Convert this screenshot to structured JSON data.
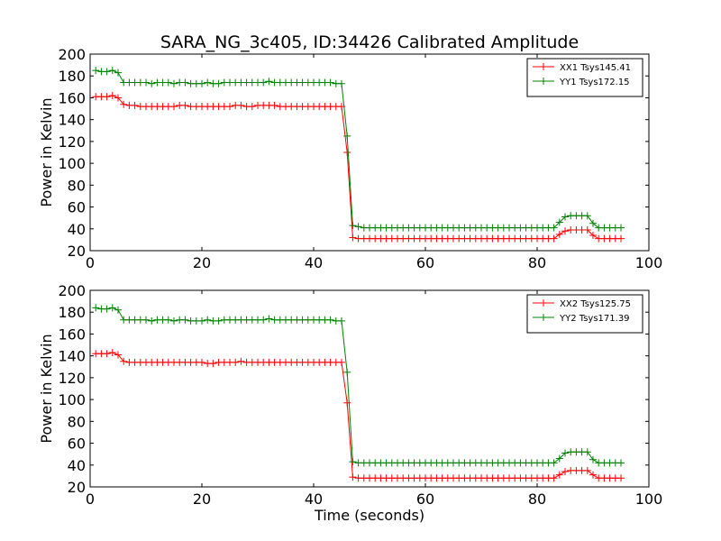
{
  "title": "SARA_NG_3c405, ID:34426 Calibrated Amplitude",
  "chart_data": [
    {
      "type": "line",
      "title": "SARA_NG_3c405, ID:34426 Calibrated Amplitude",
      "xlabel": "",
      "ylabel": "Power in Kelvin",
      "xlim": [
        0,
        100
      ],
      "ylim": [
        20,
        200
      ],
      "xticks": [
        0,
        20,
        40,
        60,
        80,
        100
      ],
      "yticks": [
        20,
        40,
        60,
        80,
        100,
        120,
        140,
        160,
        180,
        200
      ],
      "legend": "top-right",
      "grid": false,
      "series": [
        {
          "name": "XX1 Tsys145.41",
          "color": "#ff0000",
          "x": [
            1,
            2,
            3,
            4,
            5,
            6,
            7,
            8,
            9,
            10,
            11,
            12,
            13,
            14,
            15,
            16,
            17,
            18,
            19,
            20,
            21,
            22,
            23,
            24,
            25,
            26,
            27,
            28,
            29,
            30,
            31,
            32,
            33,
            34,
            35,
            36,
            37,
            38,
            39,
            40,
            41,
            42,
            43,
            44,
            45,
            46,
            47,
            48,
            49,
            50,
            51,
            52,
            53,
            54,
            55,
            56,
            57,
            58,
            59,
            60,
            61,
            62,
            63,
            64,
            65,
            66,
            67,
            68,
            69,
            70,
            71,
            72,
            73,
            74,
            75,
            76,
            77,
            78,
            79,
            80,
            81,
            82,
            83,
            84,
            85,
            86,
            87,
            88,
            89,
            90,
            91,
            92,
            93,
            94,
            95
          ],
          "y": [
            161,
            161,
            161,
            162,
            160,
            154,
            153,
            153,
            152,
            152,
            152,
            152,
            152,
            152,
            152,
            153,
            153,
            152,
            152,
            152,
            152,
            152,
            152,
            152,
            152,
            153,
            153,
            152,
            152,
            153,
            153,
            153,
            153,
            152,
            152,
            152,
            152,
            152,
            152,
            152,
            152,
            152,
            152,
            152,
            152,
            110,
            32,
            31,
            31,
            31,
            31,
            31,
            31,
            31,
            31,
            31,
            31,
            31,
            31,
            31,
            31,
            31,
            31,
            31,
            31,
            31,
            31,
            31,
            31,
            31,
            31,
            31,
            31,
            31,
            31,
            31,
            31,
            31,
            31,
            31,
            31,
            31,
            31,
            35,
            38,
            39,
            39,
            39,
            39,
            34,
            31,
            31,
            31,
            31,
            31
          ]
        },
        {
          "name": "YY1 Tsys172.15",
          "color": "#008000",
          "x": [
            1,
            2,
            3,
            4,
            5,
            6,
            7,
            8,
            9,
            10,
            11,
            12,
            13,
            14,
            15,
            16,
            17,
            18,
            19,
            20,
            21,
            22,
            23,
            24,
            25,
            26,
            27,
            28,
            29,
            30,
            31,
            32,
            33,
            34,
            35,
            36,
            37,
            38,
            39,
            40,
            41,
            42,
            43,
            44,
            45,
            46,
            47,
            48,
            49,
            50,
            51,
            52,
            53,
            54,
            55,
            56,
            57,
            58,
            59,
            60,
            61,
            62,
            63,
            64,
            65,
            66,
            67,
            68,
            69,
            70,
            71,
            72,
            73,
            74,
            75,
            76,
            77,
            78,
            79,
            80,
            81,
            82,
            83,
            84,
            85,
            86,
            87,
            88,
            89,
            90,
            91,
            92,
            93,
            94,
            95
          ],
          "y": [
            185,
            184,
            184,
            185,
            183,
            174,
            174,
            174,
            174,
            174,
            173,
            174,
            174,
            174,
            173,
            174,
            174,
            173,
            173,
            173,
            174,
            173,
            173,
            174,
            174,
            174,
            174,
            174,
            174,
            174,
            174,
            175,
            174,
            174,
            174,
            174,
            174,
            174,
            174,
            174,
            174,
            174,
            174,
            173,
            173,
            125,
            43,
            42,
            41,
            41,
            41,
            41,
            41,
            41,
            41,
            41,
            41,
            41,
            41,
            41,
            41,
            41,
            41,
            41,
            41,
            41,
            41,
            41,
            41,
            41,
            41,
            41,
            41,
            41,
            41,
            41,
            41,
            41,
            41,
            41,
            41,
            41,
            41,
            46,
            51,
            52,
            52,
            52,
            52,
            45,
            41,
            41,
            41,
            41,
            41
          ]
        }
      ]
    },
    {
      "type": "line",
      "title": "",
      "xlabel": "Time (seconds)",
      "ylabel": "Power in Kelvin",
      "xlim": [
        0,
        100
      ],
      "ylim": [
        20,
        200
      ],
      "xticks": [
        0,
        20,
        40,
        60,
        80,
        100
      ],
      "yticks": [
        20,
        40,
        60,
        80,
        100,
        120,
        140,
        160,
        180,
        200
      ],
      "legend": "top-right",
      "grid": false,
      "series": [
        {
          "name": "XX2 Tsys125.75",
          "color": "#ff0000",
          "x": [
            1,
            2,
            3,
            4,
            5,
            6,
            7,
            8,
            9,
            10,
            11,
            12,
            13,
            14,
            15,
            16,
            17,
            18,
            19,
            20,
            21,
            22,
            23,
            24,
            25,
            26,
            27,
            28,
            29,
            30,
            31,
            32,
            33,
            34,
            35,
            36,
            37,
            38,
            39,
            40,
            41,
            42,
            43,
            44,
            45,
            46,
            47,
            48,
            49,
            50,
            51,
            52,
            53,
            54,
            55,
            56,
            57,
            58,
            59,
            60,
            61,
            62,
            63,
            64,
            65,
            66,
            67,
            68,
            69,
            70,
            71,
            72,
            73,
            74,
            75,
            76,
            77,
            78,
            79,
            80,
            81,
            82,
            83,
            84,
            85,
            86,
            87,
            88,
            89,
            90,
            91,
            92,
            93,
            94,
            95
          ],
          "y": [
            142,
            142,
            142,
            143,
            141,
            135,
            134,
            134,
            134,
            134,
            134,
            134,
            134,
            134,
            134,
            134,
            134,
            134,
            134,
            134,
            133,
            133,
            134,
            134,
            134,
            134,
            135,
            134,
            134,
            134,
            134,
            134,
            134,
            134,
            134,
            134,
            134,
            134,
            134,
            134,
            134,
            134,
            134,
            134,
            134,
            97,
            29,
            28,
            28,
            28,
            28,
            28,
            28,
            28,
            28,
            28,
            28,
            28,
            28,
            28,
            28,
            28,
            28,
            28,
            28,
            28,
            28,
            28,
            28,
            28,
            28,
            28,
            28,
            28,
            28,
            28,
            28,
            28,
            28,
            28,
            28,
            28,
            28,
            31,
            34,
            35,
            35,
            35,
            35,
            31,
            28,
            28,
            28,
            28,
            28
          ]
        },
        {
          "name": "YY2 Tsys171.39",
          "color": "#008000",
          "x": [
            1,
            2,
            3,
            4,
            5,
            6,
            7,
            8,
            9,
            10,
            11,
            12,
            13,
            14,
            15,
            16,
            17,
            18,
            19,
            20,
            21,
            22,
            23,
            24,
            25,
            26,
            27,
            28,
            29,
            30,
            31,
            32,
            33,
            34,
            35,
            36,
            37,
            38,
            39,
            40,
            41,
            42,
            43,
            44,
            45,
            46,
            47,
            48,
            49,
            50,
            51,
            52,
            53,
            54,
            55,
            56,
            57,
            58,
            59,
            60,
            61,
            62,
            63,
            64,
            65,
            66,
            67,
            68,
            69,
            70,
            71,
            72,
            73,
            74,
            75,
            76,
            77,
            78,
            79,
            80,
            81,
            82,
            83,
            84,
            85,
            86,
            87,
            88,
            89,
            90,
            91,
            92,
            93,
            94,
            95
          ],
          "y": [
            184,
            183,
            183,
            184,
            182,
            173,
            173,
            173,
            173,
            173,
            172,
            173,
            173,
            173,
            172,
            173,
            173,
            172,
            172,
            172,
            173,
            172,
            172,
            173,
            173,
            173,
            173,
            173,
            173,
            173,
            173,
            174,
            173,
            173,
            173,
            173,
            173,
            173,
            173,
            173,
            173,
            173,
            173,
            172,
            172,
            125,
            43,
            42,
            42,
            42,
            42,
            42,
            42,
            42,
            42,
            42,
            42,
            42,
            42,
            42,
            42,
            42,
            42,
            42,
            42,
            42,
            42,
            42,
            42,
            42,
            42,
            42,
            42,
            42,
            42,
            42,
            42,
            42,
            42,
            42,
            42,
            42,
            42,
            46,
            51,
            52,
            52,
            52,
            52,
            45,
            42,
            42,
            42,
            42,
            42
          ]
        }
      ]
    }
  ]
}
